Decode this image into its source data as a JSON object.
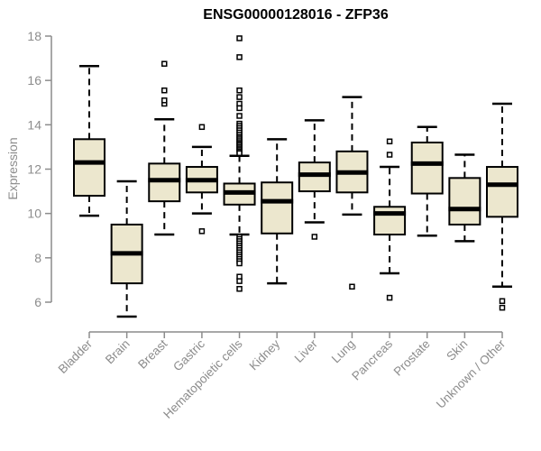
{
  "chart_data": {
    "type": "boxplot",
    "title": "ENSG00000128016 - ZFP36",
    "ylabel": "Expression",
    "xlabel": "",
    "ylim": [
      6,
      18
    ],
    "yticks": [
      6,
      8,
      10,
      12,
      14,
      16,
      18
    ],
    "grid": false,
    "legend": "none",
    "categories": [
      "Bladder",
      "Brain",
      "Breast",
      "Gastric",
      "Hematopoietic cells",
      "Kidney",
      "Liver",
      "Lung",
      "Pancreas",
      "Prostate",
      "Skin",
      "Unknown / Other"
    ],
    "series": [
      {
        "name": "Bladder",
        "whisker_low": 9.9,
        "q1": 10.8,
        "median": 12.3,
        "q3": 13.35,
        "whisker_high": 16.65,
        "outliers": []
      },
      {
        "name": "Brain",
        "whisker_low": 5.35,
        "q1": 6.85,
        "median": 8.2,
        "q3": 9.5,
        "whisker_high": 11.45,
        "outliers": []
      },
      {
        "name": "Breast",
        "whisker_low": 9.05,
        "q1": 10.55,
        "median": 11.5,
        "q3": 12.25,
        "whisker_high": 14.25,
        "outliers": [
          14.95,
          15.1,
          15.55,
          16.75
        ]
      },
      {
        "name": "Gastric",
        "whisker_low": 10.0,
        "q1": 10.95,
        "median": 11.5,
        "q3": 12.1,
        "whisker_high": 13.0,
        "outliers": [
          13.9,
          9.2
        ]
      },
      {
        "name": "Hematopoietic cells",
        "whisker_low": 9.05,
        "q1": 10.4,
        "median": 10.95,
        "q3": 11.35,
        "whisker_high": 12.6,
        "outliers": [
          17.9,
          17.05,
          15.55,
          15.25,
          14.95,
          14.75,
          14.4,
          14.05,
          13.95,
          13.85,
          13.75,
          13.65,
          13.55,
          13.45,
          13.38,
          13.3,
          13.22,
          13.15,
          13.08,
          13.0,
          12.93,
          12.86,
          12.79,
          12.72,
          8.95,
          8.85,
          8.75,
          8.65,
          8.55,
          8.45,
          8.35,
          8.25,
          8.15,
          8.05,
          7.95,
          7.85,
          7.75,
          7.15,
          6.95,
          6.6
        ]
      },
      {
        "name": "Kidney",
        "whisker_low": 6.85,
        "q1": 9.1,
        "median": 10.55,
        "q3": 11.4,
        "whisker_high": 13.35,
        "outliers": []
      },
      {
        "name": "Liver",
        "whisker_low": 9.6,
        "q1": 11.0,
        "median": 11.75,
        "q3": 12.3,
        "whisker_high": 14.2,
        "outliers": [
          8.95
        ]
      },
      {
        "name": "Lung",
        "whisker_low": 9.95,
        "q1": 10.95,
        "median": 11.85,
        "q3": 12.8,
        "whisker_high": 15.25,
        "outliers": [
          6.7
        ]
      },
      {
        "name": "Pancreas",
        "whisker_low": 7.3,
        "q1": 9.05,
        "median": 10.0,
        "q3": 10.3,
        "whisker_high": 12.1,
        "outliers": [
          13.25,
          12.65,
          6.2
        ]
      },
      {
        "name": "Prostate",
        "whisker_low": 9.0,
        "q1": 10.9,
        "median": 12.25,
        "q3": 13.2,
        "whisker_high": 13.9,
        "outliers": []
      },
      {
        "name": "Skin",
        "whisker_low": 8.75,
        "q1": 9.5,
        "median": 10.2,
        "q3": 11.6,
        "whisker_high": 12.65,
        "outliers": []
      },
      {
        "name": "Unknown / Other",
        "whisker_low": 6.7,
        "q1": 9.85,
        "median": 11.3,
        "q3": 12.1,
        "whisker_high": 14.95,
        "outliers": [
          6.05,
          5.75
        ]
      }
    ],
    "colors": {
      "box_fill": "#ECE7CE",
      "box_border": "#000000",
      "median": "#000000",
      "whisker": "#000000",
      "outlier_stroke": "#000000",
      "axis": "#8C8C8C",
      "axis_text": "#8C8C8C",
      "title_color": "#000000",
      "background": "#FFFFFF"
    }
  }
}
